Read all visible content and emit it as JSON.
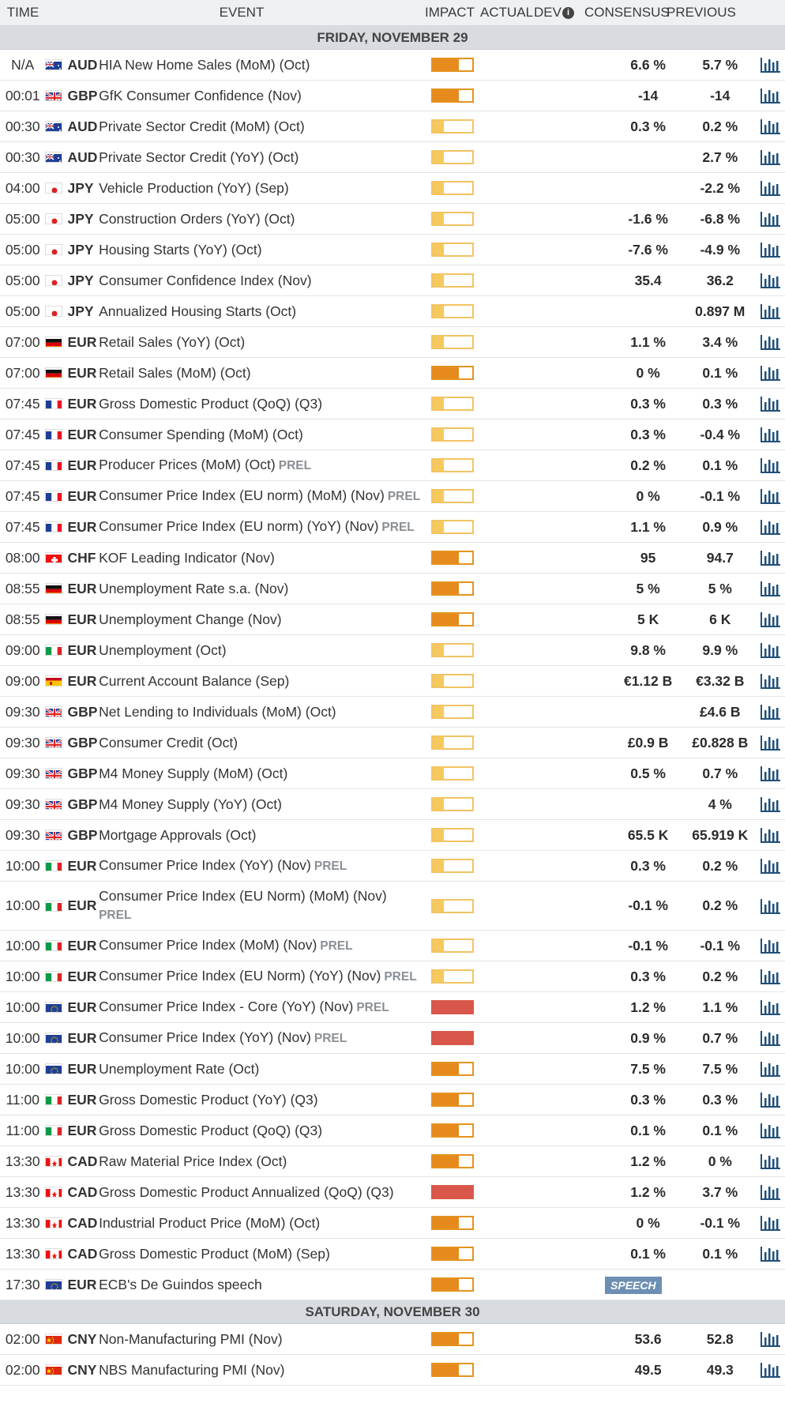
{
  "header": {
    "time": "TIME",
    "event": "EVENT",
    "impact": "IMPACT",
    "actual": "ACTUAL",
    "dev": "DEV",
    "consensus": "CONSENSUS",
    "previous": "PREVIOUS"
  },
  "colors": {
    "low": "#f6c95f",
    "medium": "#e68a1d",
    "high": "#d9574a",
    "speech": "#6d8fb3"
  },
  "days": [
    {
      "label": "FRIDAY, NOVEMBER 29",
      "rows": [
        {
          "time": "N/A",
          "flag": "au",
          "cur": "AUD",
          "event": "HIA New Home Sales (MoM) (Oct)",
          "prel": "",
          "impact": "med",
          "cons": "6.6 %",
          "prev": "5.7 %"
        },
        {
          "time": "00:01",
          "flag": "gb",
          "cur": "GBP",
          "event": "GfK Consumer Confidence (Nov)",
          "prel": "",
          "impact": "med",
          "cons": "-14",
          "prev": "-14"
        },
        {
          "time": "00:30",
          "flag": "au",
          "cur": "AUD",
          "event": "Private Sector Credit (MoM) (Oct)",
          "prel": "",
          "impact": "low",
          "cons": "0.3 %",
          "prev": "0.2 %"
        },
        {
          "time": "00:30",
          "flag": "au",
          "cur": "AUD",
          "event": "Private Sector Credit (YoY) (Oct)",
          "prel": "",
          "impact": "low",
          "cons": "",
          "prev": "2.7 %"
        },
        {
          "time": "04:00",
          "flag": "jp",
          "cur": "JPY",
          "event": "Vehicle Production (YoY) (Sep)",
          "prel": "",
          "impact": "low",
          "cons": "",
          "prev": "-2.2 %"
        },
        {
          "time": "05:00",
          "flag": "jp",
          "cur": "JPY",
          "event": "Construction Orders (YoY) (Oct)",
          "prel": "",
          "impact": "low",
          "cons": "-1.6 %",
          "prev": "-6.8 %"
        },
        {
          "time": "05:00",
          "flag": "jp",
          "cur": "JPY",
          "event": "Housing Starts (YoY) (Oct)",
          "prel": "",
          "impact": "low",
          "cons": "-7.6 %",
          "prev": "-4.9 %"
        },
        {
          "time": "05:00",
          "flag": "jp",
          "cur": "JPY",
          "event": "Consumer Confidence Index (Nov)",
          "prel": "",
          "impact": "low",
          "cons": "35.4",
          "prev": "36.2"
        },
        {
          "time": "05:00",
          "flag": "jp",
          "cur": "JPY",
          "event": "Annualized Housing Starts (Oct)",
          "prel": "",
          "impact": "low",
          "cons": "",
          "prev": "0.897 M"
        },
        {
          "time": "07:00",
          "flag": "de",
          "cur": "EUR",
          "event": "Retail Sales (YoY) (Oct)",
          "prel": "",
          "impact": "low",
          "cons": "1.1 %",
          "prev": "3.4 %"
        },
        {
          "time": "07:00",
          "flag": "de",
          "cur": "EUR",
          "event": "Retail Sales (MoM) (Oct)",
          "prel": "",
          "impact": "med",
          "cons": "0 %",
          "prev": "0.1 %"
        },
        {
          "time": "07:45",
          "flag": "fr",
          "cur": "EUR",
          "event": "Gross Domestic Product (QoQ) (Q3)",
          "prel": "",
          "impact": "low",
          "cons": "0.3 %",
          "prev": "0.3 %"
        },
        {
          "time": "07:45",
          "flag": "fr",
          "cur": "EUR",
          "event": "Consumer Spending (MoM) (Oct)",
          "prel": "",
          "impact": "low",
          "cons": "0.3 %",
          "prev": "-0.4 %"
        },
        {
          "time": "07:45",
          "flag": "fr",
          "cur": "EUR",
          "event": "Producer Prices (MoM) (Oct)",
          "prel": "PREL",
          "impact": "low",
          "cons": "0.2 %",
          "prev": "0.1 %"
        },
        {
          "time": "07:45",
          "flag": "fr",
          "cur": "EUR",
          "event": "Consumer Price Index (EU norm) (MoM) (Nov)",
          "prel": "PREL",
          "impact": "low",
          "cons": "0 %",
          "prev": "-0.1 %"
        },
        {
          "time": "07:45",
          "flag": "fr",
          "cur": "EUR",
          "event": "Consumer Price Index (EU norm) (YoY) (Nov)",
          "prel": "PREL",
          "impact": "low",
          "cons": "1.1 %",
          "prev": "0.9 %"
        },
        {
          "time": "08:00",
          "flag": "ch",
          "cur": "CHF",
          "event": "KOF Leading Indicator (Nov)",
          "prel": "",
          "impact": "med",
          "cons": "95",
          "prev": "94.7"
        },
        {
          "time": "08:55",
          "flag": "de",
          "cur": "EUR",
          "event": "Unemployment Rate s.a. (Nov)",
          "prel": "",
          "impact": "med",
          "cons": "5 %",
          "prev": "5 %"
        },
        {
          "time": "08:55",
          "flag": "de",
          "cur": "EUR",
          "event": "Unemployment Change (Nov)",
          "prel": "",
          "impact": "med",
          "cons": "5 K",
          "prev": "6 K"
        },
        {
          "time": "09:00",
          "flag": "it",
          "cur": "EUR",
          "event": "Unemployment (Oct)",
          "prel": "",
          "impact": "low",
          "cons": "9.8 %",
          "prev": "9.9 %"
        },
        {
          "time": "09:00",
          "flag": "es",
          "cur": "EUR",
          "event": "Current Account Balance (Sep)",
          "prel": "",
          "impact": "low",
          "cons": "€1.12 B",
          "prev": "€3.32 B"
        },
        {
          "time": "09:30",
          "flag": "gb",
          "cur": "GBP",
          "event": "Net Lending to Individuals (MoM) (Oct)",
          "prel": "",
          "impact": "low",
          "cons": "",
          "prev": "£4.6 B"
        },
        {
          "time": "09:30",
          "flag": "gb",
          "cur": "GBP",
          "event": "Consumer Credit (Oct)",
          "prel": "",
          "impact": "low",
          "cons": "£0.9 B",
          "prev": "£0.828 B"
        },
        {
          "time": "09:30",
          "flag": "gb",
          "cur": "GBP",
          "event": "M4 Money Supply (MoM) (Oct)",
          "prel": "",
          "impact": "low",
          "cons": "0.5 %",
          "prev": "0.7 %"
        },
        {
          "time": "09:30",
          "flag": "gb",
          "cur": "GBP",
          "event": "M4 Money Supply (YoY) (Oct)",
          "prel": "",
          "impact": "low",
          "cons": "",
          "prev": "4 %"
        },
        {
          "time": "09:30",
          "flag": "gb",
          "cur": "GBP",
          "event": "Mortgage Approvals (Oct)",
          "prel": "",
          "impact": "low",
          "cons": "65.5 K",
          "prev": "65.919 K"
        },
        {
          "time": "10:00",
          "flag": "it",
          "cur": "EUR",
          "event": "Consumer Price Index (YoY) (Nov)",
          "prel": "PREL",
          "impact": "low",
          "cons": "0.3 %",
          "prev": "0.2 %"
        },
        {
          "time": "10:00",
          "flag": "it",
          "cur": "EUR",
          "event": "Consumer Price Index (EU Norm) (MoM) (Nov)",
          "prel": "PREL",
          "impact": "low",
          "cons": "-0.1 %",
          "prev": "0.2 %",
          "tall": true
        },
        {
          "time": "10:00",
          "flag": "it",
          "cur": "EUR",
          "event": "Consumer Price Index (MoM) (Nov)",
          "prel": "PREL",
          "impact": "low",
          "cons": "-0.1 %",
          "prev": "-0.1 %"
        },
        {
          "time": "10:00",
          "flag": "it",
          "cur": "EUR",
          "event": "Consumer Price Index (EU Norm) (YoY) (Nov)",
          "prel": "PREL",
          "impact": "low",
          "cons": "0.3 %",
          "prev": "0.2 %"
        },
        {
          "time": "10:00",
          "flag": "eu",
          "cur": "EUR",
          "event": "Consumer Price Index - Core (YoY) (Nov)",
          "prel": "PREL",
          "impact": "high",
          "cons": "1.2 %",
          "prev": "1.1 %"
        },
        {
          "time": "10:00",
          "flag": "eu",
          "cur": "EUR",
          "event": "Consumer Price Index (YoY) (Nov)",
          "prel": "PREL",
          "impact": "high",
          "cons": "0.9 %",
          "prev": "0.7 %"
        },
        {
          "time": "10:00",
          "flag": "eu",
          "cur": "EUR",
          "event": "Unemployment Rate (Oct)",
          "prel": "",
          "impact": "med",
          "cons": "7.5 %",
          "prev": "7.5 %"
        },
        {
          "time": "11:00",
          "flag": "it",
          "cur": "EUR",
          "event": "Gross Domestic Product (YoY) (Q3)",
          "prel": "",
          "impact": "med",
          "cons": "0.3 %",
          "prev": "0.3 %"
        },
        {
          "time": "11:00",
          "flag": "it",
          "cur": "EUR",
          "event": "Gross Domestic Product (QoQ) (Q3)",
          "prel": "",
          "impact": "med",
          "cons": "0.1 %",
          "prev": "0.1 %"
        },
        {
          "time": "13:30",
          "flag": "ca",
          "cur": "CAD",
          "event": "Raw Material Price Index (Oct)",
          "prel": "",
          "impact": "med",
          "cons": "1.2 %",
          "prev": "0 %"
        },
        {
          "time": "13:30",
          "flag": "ca",
          "cur": "CAD",
          "event": "Gross Domestic Product Annualized (QoQ) (Q3)",
          "prel": "",
          "impact": "high",
          "cons": "1.2 %",
          "prev": "3.7 %"
        },
        {
          "time": "13:30",
          "flag": "ca",
          "cur": "CAD",
          "event": "Industrial Product Price (MoM) (Oct)",
          "prel": "",
          "impact": "med",
          "cons": "0 %",
          "prev": "-0.1 %"
        },
        {
          "time": "13:30",
          "flag": "ca",
          "cur": "CAD",
          "event": "Gross Domestic Product (MoM) (Sep)",
          "prel": "",
          "impact": "med",
          "cons": "0.1 %",
          "prev": "0.1 %"
        },
        {
          "time": "17:30",
          "flag": "eu",
          "cur": "EUR",
          "event": "ECB's De Guindos speech",
          "prel": "",
          "impact": "med",
          "cons": "",
          "prev": "",
          "speech": "SPEECH",
          "nochart": true
        }
      ]
    },
    {
      "label": "SATURDAY, NOVEMBER 30",
      "rows": [
        {
          "time": "02:00",
          "flag": "cn",
          "cur": "CNY",
          "event": "Non-Manufacturing PMI (Nov)",
          "prel": "",
          "impact": "med",
          "cons": "53.6",
          "prev": "52.8"
        },
        {
          "time": "02:00",
          "flag": "cn",
          "cur": "CNY",
          "event": "NBS Manufacturing PMI (Nov)",
          "prel": "",
          "impact": "med",
          "cons": "49.5",
          "prev": "49.3"
        }
      ]
    }
  ]
}
